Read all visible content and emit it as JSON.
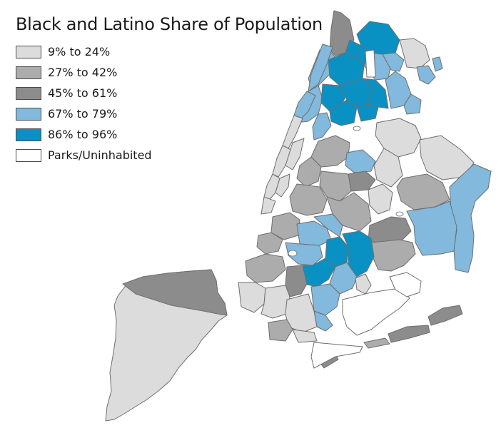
{
  "title": "Black and Latino Share of Population",
  "legend": [
    {
      "label": "9% to 24%",
      "color": "#dcdcdc"
    },
    {
      "label": "27% to 42%",
      "color": "#acacac"
    },
    {
      "label": "45% to 61%",
      "color": "#8c8c8c"
    },
    {
      "label": "67% to 79%",
      "color": "#82b9dc"
    },
    {
      "label": "86% to 96%",
      "color": "#0a91c3"
    },
    {
      "label": "Parks/Uninhabited",
      "color": "#ffffff"
    }
  ],
  "colors": {
    "border": "#6e6e6e",
    "outline": "#3c3c3c"
  }
}
